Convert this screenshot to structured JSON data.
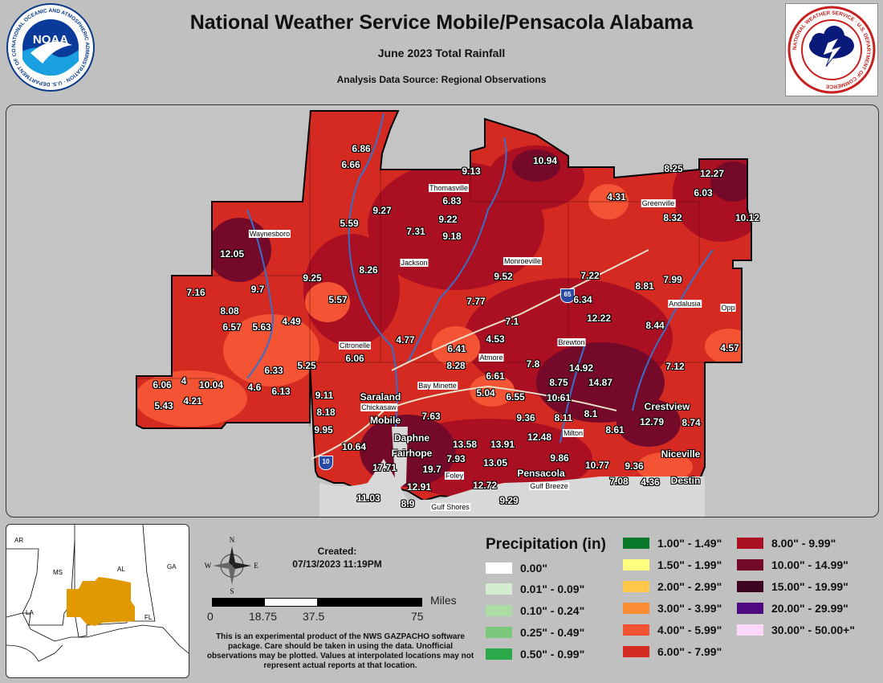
{
  "header": {
    "title": "National Weather Service Mobile/Pensacola Alabama",
    "subtitle": "June 2023 Total Rainfall",
    "source": "Analysis Data Source: Regional Observations",
    "noaa_logo_text": "NOAA",
    "noaa_ring_text": "NATIONAL OCEANIC AND ATMOSPHERIC ADMINISTRATION · U.S. DEPARTMENT OF COMMERCE",
    "nws_ring_text": "NATIONAL WEATHER SERVICE · U.S. DEPARTMENT OF COMMERCE"
  },
  "map": {
    "colors": {
      "c6": "#d42a22",
      "c8": "#aa0f22",
      "c10": "#75092a",
      "c4": "#f45434",
      "bg": "#c4c4c4"
    },
    "values": [
      {
        "v": "6.86"
      },
      {
        "v": "6.66"
      },
      {
        "v": "9.13"
      },
      {
        "v": "10.94"
      },
      {
        "v": "8.25"
      },
      {
        "v": "12.27"
      },
      {
        "v": "6.83"
      },
      {
        "v": "6.03"
      },
      {
        "v": "4.31"
      },
      {
        "v": "9.27"
      },
      {
        "v": "9.22"
      },
      {
        "v": "8.32"
      },
      {
        "v": "10.12"
      },
      {
        "v": "5.59"
      },
      {
        "v": "7.31"
      },
      {
        "v": "9.18"
      },
      {
        "v": "12.05"
      },
      {
        "v": "8.26"
      },
      {
        "v": "9.25"
      },
      {
        "v": "9.52"
      },
      {
        "v": "7.16"
      },
      {
        "v": "9.7"
      },
      {
        "v": "7.22"
      },
      {
        "v": "8.81"
      },
      {
        "v": "7.99"
      },
      {
        "v": "8.08"
      },
      {
        "v": "5.57"
      },
      {
        "v": "7.77"
      },
      {
        "v": "6.34"
      },
      {
        "v": "6.57"
      },
      {
        "v": "5.63"
      },
      {
        "v": "4.49"
      },
      {
        "v": "7.1"
      },
      {
        "v": "12.22"
      },
      {
        "v": "8.44"
      },
      {
        "v": "4.77"
      },
      {
        "v": "4.53"
      },
      {
        "v": "6.41"
      },
      {
        "v": "4.57"
      },
      {
        "v": "6.06"
      },
      {
        "v": "5.25"
      },
      {
        "v": "8.28"
      },
      {
        "v": "7.8"
      },
      {
        "v": "14.92"
      },
      {
        "v": "6.33"
      },
      {
        "v": "6.61"
      },
      {
        "v": "7.12"
      },
      {
        "v": "6.06"
      },
      {
        "v": "4"
      },
      {
        "v": "10.04"
      },
      {
        "v": "8.75"
      },
      {
        "v": "14.87"
      },
      {
        "v": "4.6"
      },
      {
        "v": "6.13"
      },
      {
        "v": "9.11"
      },
      {
        "v": "5.04"
      },
      {
        "v": "6.55"
      },
      {
        "v": "10.61"
      },
      {
        "v": "5.43"
      },
      {
        "v": "4.21"
      },
      {
        "v": "8.18"
      },
      {
        "v": "7.63"
      },
      {
        "v": "9.36"
      },
      {
        "v": "8.11"
      },
      {
        "v": "8.1"
      },
      {
        "v": "12.79"
      },
      {
        "v": "8.74"
      },
      {
        "v": "9.95"
      },
      {
        "v": "8.61"
      },
      {
        "v": "10.64"
      },
      {
        "v": "13.58"
      },
      {
        "v": "13.91"
      },
      {
        "v": "12.48"
      },
      {
        "v": "17.71"
      },
      {
        "v": "19.7"
      },
      {
        "v": "7.93"
      },
      {
        "v": "13.05"
      },
      {
        "v": "9.86"
      },
      {
        "v": "10.77"
      },
      {
        "v": "9.36"
      },
      {
        "v": "12.91"
      },
      {
        "v": "12.72"
      },
      {
        "v": "7.08"
      },
      {
        "v": "4.36"
      },
      {
        "v": "11.03"
      },
      {
        "v": "9.29"
      },
      {
        "v": "8.9"
      }
    ],
    "cities": [
      {
        "n": "Thomasville",
        "big": false
      },
      {
        "n": "Greenville",
        "big": false
      },
      {
        "n": "Waynesboro",
        "big": false
      },
      {
        "n": "Jackson",
        "big": false
      },
      {
        "n": "Monroeville",
        "big": false
      },
      {
        "n": "Andalusia",
        "big": false
      },
      {
        "n": "Opp",
        "big": false
      },
      {
        "n": "Brewton",
        "big": false
      },
      {
        "n": "Citronelle",
        "big": false
      },
      {
        "n": "Atmore",
        "big": false
      },
      {
        "n": "Bay Minette",
        "big": false
      },
      {
        "n": "Saraland",
        "big": true
      },
      {
        "n": "Chickasaw",
        "big": false
      },
      {
        "n": "Mobile",
        "big": true
      },
      {
        "n": "Crestview",
        "big": true
      },
      {
        "n": "Milton",
        "big": false
      },
      {
        "n": "Daphne",
        "big": true
      },
      {
        "n": "Fairhope",
        "big": true
      },
      {
        "n": "Pensacola",
        "big": true
      },
      {
        "n": "Gulf Breeze",
        "big": false
      },
      {
        "n": "Foley",
        "big": false
      },
      {
        "n": "Niceville",
        "big": true
      },
      {
        "n": "Destin",
        "big": true
      },
      {
        "n": "Gulf Shores",
        "big": false
      }
    ],
    "shields": [
      {
        "n": "65"
      },
      {
        "n": "10"
      }
    ]
  },
  "inset": {
    "states": [
      "AR",
      "MS",
      "AL",
      "GA",
      "LA",
      "FL"
    ],
    "highlight_color": "#e09a00"
  },
  "scale": {
    "compass": [
      "N",
      "E",
      "S",
      "W"
    ],
    "ticks": [
      "0",
      "18.75",
      "37.5",
      "75"
    ],
    "units": "Miles"
  },
  "created": {
    "label": "Created:",
    "datetime": "07/13/2023 11:19PM"
  },
  "note": "This is an experimental product of the NWS GAZPACHO software package. Care should be taken in using the data. Unofficial observations may be plotted. Values at interpolated locations may not represent actual reports at that location.",
  "legend": {
    "title": "Precipitation (in)",
    "items": [
      {
        "label": "0.00\"",
        "color": "#ffffff"
      },
      {
        "label": "0.01\" - 0.09\"",
        "color": "#d4ecd0"
      },
      {
        "label": "0.10\" - 0.24\"",
        "color": "#acdca4"
      },
      {
        "label": "0.25\" - 0.49\"",
        "color": "#7cc87c"
      },
      {
        "label": "0.50\" - 0.99\"",
        "color": "#2aa84a"
      },
      {
        "label": "1.00\" - 1.49\"",
        "color": "#0a7a2a"
      },
      {
        "label": "1.50\" - 1.99\"",
        "color": "#ffff80"
      },
      {
        "label": "2.00\" - 2.99\"",
        "color": "#ffc84a"
      },
      {
        "label": "3.00\" - 3.99\"",
        "color": "#fa8c34"
      },
      {
        "label": "4.00\" - 5.99\"",
        "color": "#f45434"
      },
      {
        "label": "6.00\" - 7.99\"",
        "color": "#d42a22"
      },
      {
        "label": "8.00\" - 9.99\"",
        "color": "#aa0f22"
      },
      {
        "label": "10.00\" - 14.99\"",
        "color": "#75092a"
      },
      {
        "label": "15.00\" - 19.99\"",
        "color": "#3c0420"
      },
      {
        "label": "20.00\" - 29.99\"",
        "color": "#4e0a7e"
      },
      {
        "label": "30.00\" - 50.00+\"",
        "color": "#fcd8f8"
      }
    ]
  }
}
